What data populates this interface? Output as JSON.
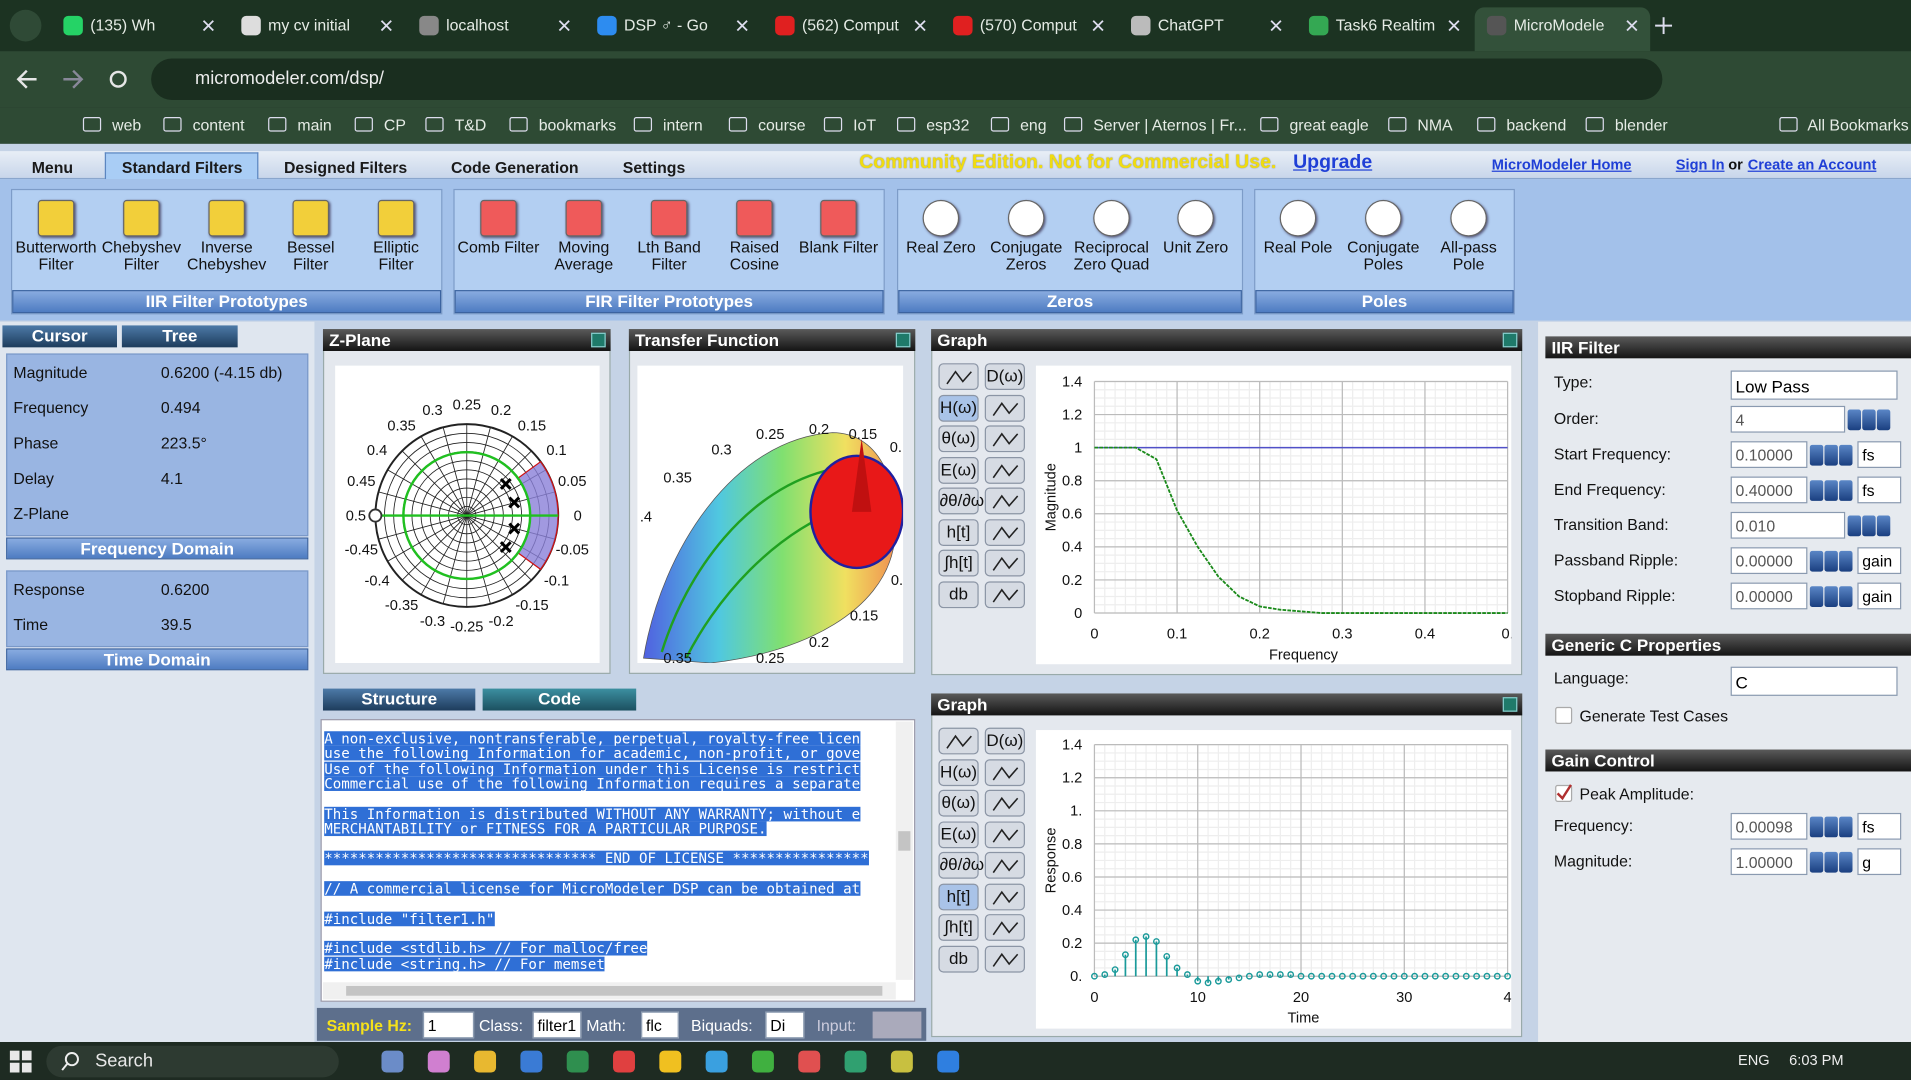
{
  "browser": {
    "tabs": [
      "(135) Wh",
      "my cv initial",
      "localhost",
      "DSP ♂ - Go",
      "(562) Comput",
      "(570) Comput",
      "ChatGPT",
      "Task6 Realtim",
      "MicroModele"
    ],
    "url": "micromodeler.com/dsp/",
    "bookmarks": [
      "web",
      "content",
      "main",
      "CP",
      "T&D",
      "bookmarks",
      "intern",
      "course",
      "IoT",
      "esp32",
      "eng",
      "Server | Aternos | Fr...",
      "great eagle",
      "NMA",
      "backend",
      "blender"
    ],
    "all_bookmarks": "All Bookmarks"
  },
  "menu": {
    "items": [
      "Menu",
      "Standard Filters",
      "Designed Filters",
      "Code Generation",
      "Settings"
    ],
    "notice": "Community Edition. Not for Commercial Use.",
    "upgrade": "Upgrade",
    "home": "MicroModeler Home",
    "sign_in": "Sign In",
    "or": "or",
    "create": "Create an Account"
  },
  "toolbar": [
    {
      "title": "IIR Filter Prototypes",
      "items": [
        "Butterworth\nFilter",
        "Chebyshev\nFilter",
        "Inverse\nChebyshev",
        "Bessel\nFilter",
        "Elliptic\nFilter"
      ]
    },
    {
      "title": "FIR Filter Prototypes",
      "items": [
        "Comb Filter",
        "Moving\nAverage",
        "Lth Band\nFilter",
        "Raised\nCosine",
        "Blank Filter"
      ]
    },
    {
      "title": "Zeros",
      "items": [
        "Real Zero",
        "Conjugate\nZeros",
        "Reciprocal\nZero Quad",
        "Unit Zero"
      ]
    },
    {
      "title": "Poles",
      "items": [
        "Real Pole",
        "Conjugate\nPoles",
        "All-pass\nPole"
      ]
    }
  ],
  "cursor": {
    "tabs": [
      "Cursor",
      "Tree"
    ],
    "rows": [
      {
        "label": "Magnitude",
        "value": "0.6200 (-4.15 db)"
      },
      {
        "label": "Frequency",
        "value": "0.494"
      },
      {
        "label": "Phase",
        "value": "223.5°"
      },
      {
        "label": "Delay",
        "value": "4.1"
      },
      {
        "label": "Z-Plane"
      }
    ],
    "frequency_domain": "Frequency Domain",
    "time_rows": [
      {
        "label": "Response",
        "value": "0.6200"
      },
      {
        "label": "Time",
        "value": "39.5"
      }
    ],
    "time_domain": "Time Domain"
  },
  "zplane": {
    "title": "Z-Plane",
    "labels": [
      {
        "value": 0,
        "label": "0"
      },
      {
        "value": 0.05,
        "label": "0.05"
      },
      {
        "value": 0.1,
        "label": "0.1"
      },
      {
        "value": 0.15,
        "label": "0.15"
      },
      {
        "value": 0.2,
        "label": "0.2"
      },
      {
        "value": 0.25,
        "label": "0.25"
      },
      {
        "value": 0.3,
        "label": "0.3"
      },
      {
        "value": 0.35,
        "label": "0.35"
      },
      {
        "value": 0.4,
        "label": "0.4"
      },
      {
        "value": 0.45,
        "label": "0.45"
      },
      {
        "value": 0.5,
        "label": "0.5"
      },
      {
        "value": -0.45,
        "label": "-0.45"
      },
      {
        "value": -0.4,
        "label": "-0.4"
      },
      {
        "value": -0.35,
        "label": "-0.35"
      },
      {
        "value": -0.3,
        "label": "-0.3"
      },
      {
        "value": -0.25,
        "label": "-0.25"
      },
      {
        "value": -0.2,
        "label": "-0.2"
      },
      {
        "value": -0.15,
        "label": "-0.15"
      },
      {
        "value": -0.1,
        "label": "-0.1"
      },
      {
        "value": -0.05,
        "label": "-0.05"
      }
    ]
  },
  "transfer": {
    "title": "Transfer Function",
    "labels": [
      "0.25",
      "0.2",
      "0.15",
      "0.",
      "0.3",
      "0.35",
      ".4",
      "0.",
      "0.15",
      "0.2",
      "0.35",
      "0.25"
    ]
  },
  "graph_title": "Graph",
  "graph_buttons": {
    "top": "D(ω)",
    "left": [
      "H(ω)",
      "θ(ω)",
      "E(ω)",
      "∂θ/∂ω",
      "h[t]",
      "∫h[t]",
      "db"
    ]
  },
  "chart_data": [
    {
      "type": "line",
      "ylabel": "Magnitude",
      "xlabel": "Frequency",
      "color": "#1a8a1a",
      "reference_line": 1,
      "reference_color": "#5050c8",
      "x": [
        0,
        0.025,
        0.05,
        0.075,
        0.1,
        0.125,
        0.15,
        0.175,
        0.2,
        0.225,
        0.25,
        0.275,
        0.3,
        0.325,
        0.35,
        0.375,
        0.4,
        0.425,
        0.45,
        0.475,
        0.5
      ],
      "values": [
        1,
        1,
        1,
        0.93,
        0.62,
        0.4,
        0.22,
        0.1,
        0.04,
        0.02,
        0.01,
        0,
        0,
        0,
        0,
        0,
        0,
        0,
        0,
        0,
        0
      ],
      "xlim": [
        0,
        0.5
      ],
      "ylim": [
        0,
        1.4
      ],
      "xticks": [
        0,
        0.1,
        0.2,
        0.3,
        0.4,
        {
          "value": 0.5,
          "label": "0."
        }
      ],
      "yticks": [
        0,
        0.2,
        0.4,
        0.6,
        0.8,
        1,
        1.2,
        1.4
      ],
      "grid": true
    },
    {
      "type": "stem",
      "ylabel": "Response",
      "xlabel": "Time",
      "color": "#1a9a9a",
      "x": [
        0,
        1,
        2,
        3,
        4,
        5,
        6,
        7,
        8,
        9,
        10,
        11,
        12,
        13,
        14,
        15,
        16,
        17,
        18,
        19,
        20,
        21,
        22,
        23,
        24,
        25,
        26,
        27,
        28,
        29,
        30,
        31,
        32,
        33,
        34,
        35,
        36,
        37,
        38,
        39,
        40
      ],
      "values": [
        0,
        0.01,
        0.04,
        0.13,
        0.22,
        0.24,
        0.21,
        0.12,
        0.05,
        0.01,
        -0.03,
        -0.04,
        -0.03,
        -0.02,
        -0.01,
        0,
        0.01,
        0.01,
        0.01,
        0.01,
        0,
        0,
        0,
        0,
        0,
        0,
        0,
        0,
        0,
        0,
        0,
        0,
        0,
        0,
        0,
        0,
        0,
        0,
        0,
        0,
        0
      ],
      "xlim": [
        0,
        40
      ],
      "ylim": [
        0,
        1.4
      ],
      "xticks": [
        0,
        10,
        20,
        30,
        {
          "value": 40,
          "label": "4"
        }
      ],
      "yticks": [
        {
          "value": 0,
          "label": "0."
        },
        0.2,
        0.4,
        0.6,
        0.8,
        {
          "value": 1,
          "label": "1."
        },
        1.2,
        1.4
      ],
      "grid": true
    }
  ],
  "code": {
    "tabs": [
      "Structure",
      "Code"
    ],
    "blocks": [
      [
        "A non-exclusive, nontransferable, perpetual, royalty-free licen",
        "use the following Information for academic, non-profit, or gove",
        "Use of the following Information under this License is restrict",
        "Commercial use of the following Information requires a separate"
      ],
      [
        "This Information is distributed WITHOUT ANY WARRANTY; without e",
        "MERCHANTABILITY or FITNESS FOR A PARTICULAR PURPOSE."
      ],
      [
        "******************************** END OF LICENSE ****************"
      ],
      [
        "// A commercial license for MicroModeler DSP can be obtained at"
      ],
      [
        "#include \"filter1.h\""
      ],
      [
        "#include <stdlib.h> // For malloc/free",
        "#include <string.h> // For memset"
      ]
    ]
  },
  "bottom": {
    "sample_hz": "Sample Hz:",
    "sample_value": "1",
    "class": "Class:",
    "class_value": "filter1",
    "math": "Math:",
    "math_value": "flc",
    "biquads": "Biquads:",
    "biquads_value": "Di",
    "input": "Input:"
  },
  "iir": {
    "title": "IIR Filter",
    "type_label": "Type:",
    "type_value": "Low Pass",
    "rows": [
      {
        "label": "Order:",
        "value": "4"
      },
      {
        "label": "Start Frequency:",
        "value": "0.10000",
        "unit": "fs"
      },
      {
        "label": "End Frequency:",
        "value": "0.40000",
        "unit": "fs"
      },
      {
        "label": "Transition Band:",
        "value": "0.010"
      },
      {
        "label": "Passband Ripple:",
        "value": "0.00000",
        "unit": "gain"
      },
      {
        "label": "Stopband Ripple:",
        "value": "0.00000",
        "unit": "gain"
      }
    ]
  },
  "generic": {
    "title": "Generic C Properties",
    "language_label": "Language:",
    "language_value": "C",
    "test_cases": "Generate Test Cases"
  },
  "gain": {
    "title": "Gain Control",
    "peak": "Peak Amplitude:",
    "rows": [
      {
        "label": "Frequency:",
        "value": "0.00098",
        "unit": "fs"
      },
      {
        "label": "Magnitude:",
        "value": "1.00000",
        "unit": "g"
      }
    ]
  },
  "taskbar": {
    "search": "Search",
    "lang": "ENG",
    "time": "6:03 PM"
  }
}
